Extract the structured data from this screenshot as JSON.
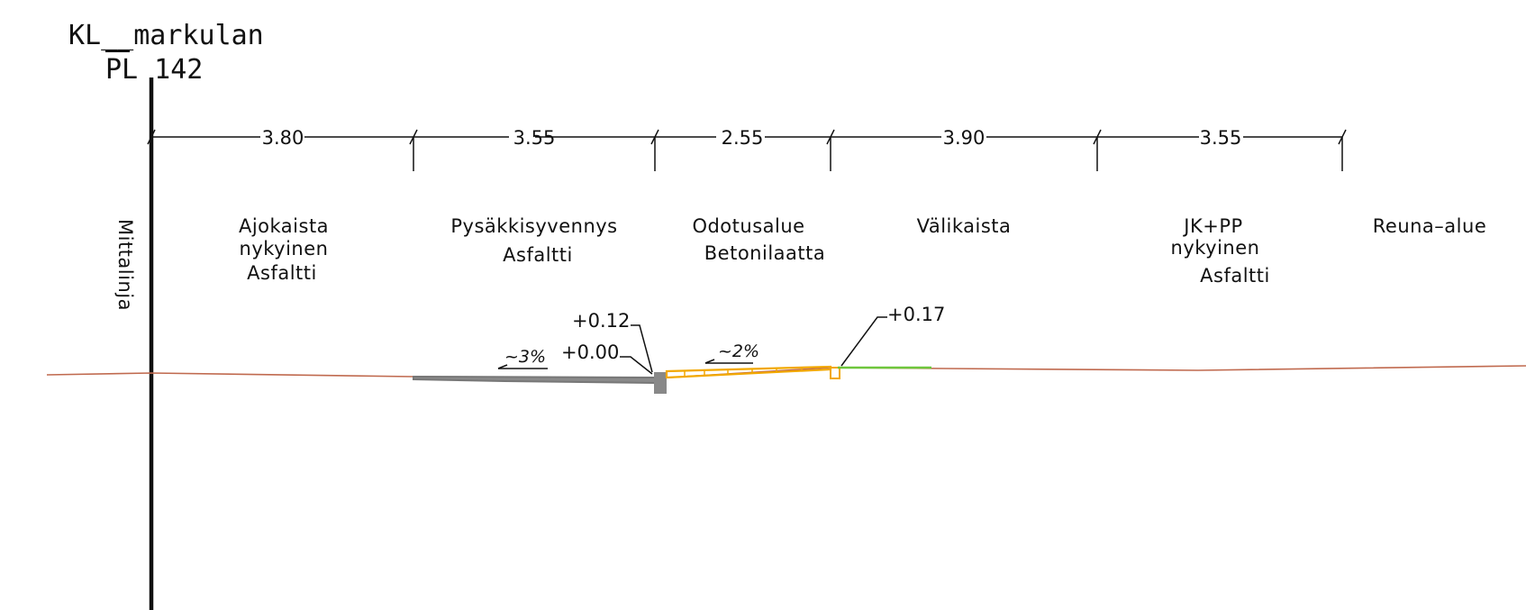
{
  "header": {
    "title": "KL__markulan",
    "station": "PL 142"
  },
  "measure_line": {
    "label": "Mittalinja"
  },
  "dimensions": [
    "3.80",
    "3.55",
    "2.55",
    "3.90",
    "3.55"
  ],
  "areas": [
    {
      "lines": [
        "Ajokaista",
        "nykyinen",
        "Asfaltti"
      ]
    },
    {
      "lines": [
        "Pysäkkisyvennys",
        "Asfaltti"
      ]
    },
    {
      "lines": [
        "Odotusalue",
        "Betonilaatta"
      ]
    },
    {
      "lines": [
        "Välikaista"
      ]
    },
    {
      "lines": [
        "JK+PP",
        "nykyinen",
        "Asfaltti"
      ]
    },
    {
      "lines": [
        "Reuna–alue"
      ]
    }
  ],
  "elevations": [
    "+0.12",
    "+0.00",
    "+0.17"
  ],
  "slopes": [
    "~3%",
    "~2%"
  ],
  "colors": {
    "ink": "#111111",
    "terrain": "#c06a4f",
    "asphalt": "#888888",
    "concrete": "#f2a800",
    "green_area": "#6ec63c"
  }
}
